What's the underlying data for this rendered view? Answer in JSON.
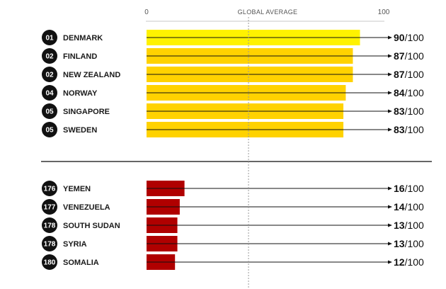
{
  "chart_data": {
    "type": "bar",
    "orientation": "horizontal",
    "axis": {
      "tick_min": "0",
      "tick_max": "100",
      "reference_label": "GLOBAL AVERAGE",
      "reference_value": 43,
      "xlim": [
        0,
        100
      ]
    },
    "score_suffix": "/100",
    "groups": [
      {
        "color": "#FFD200",
        "highlight_color": "#FFF200",
        "rows": [
          {
            "rank": "01",
            "country": "DENMARK",
            "value": 90
          },
          {
            "rank": "02",
            "country": "FINLAND",
            "value": 87
          },
          {
            "rank": "02",
            "country": "NEW ZEALAND",
            "value": 87
          },
          {
            "rank": "04",
            "country": "NORWAY",
            "value": 84
          },
          {
            "rank": "05",
            "country": "SINGAPORE",
            "value": 83
          },
          {
            "rank": "05",
            "country": "SWEDEN",
            "value": 83
          }
        ]
      },
      {
        "color": "#B00000",
        "rows": [
          {
            "rank": "176",
            "country": "YEMEN",
            "value": 16
          },
          {
            "rank": "177",
            "country": "VENEZUELA",
            "value": 14
          },
          {
            "rank": "178",
            "country": "SOUTH SUDAN",
            "value": 13
          },
          {
            "rank": "178",
            "country": "SYRIA",
            "value": 13
          },
          {
            "rank": "180",
            "country": "SOMALIA",
            "value": 12
          }
        ]
      }
    ]
  }
}
